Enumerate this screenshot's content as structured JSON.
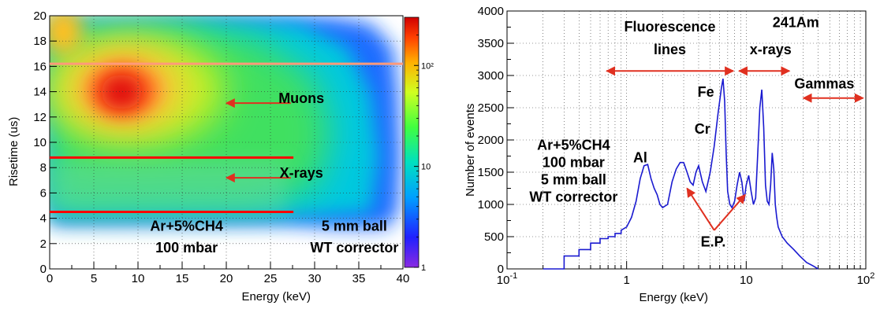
{
  "chart_data": [
    {
      "type": "heatmap",
      "xlabel": "Energy (keV)",
      "ylabel": "Risetime (us)",
      "xlim": [
        0,
        40
      ],
      "ylim": [
        0,
        20
      ],
      "x_ticks": [
        0,
        5,
        10,
        15,
        20,
        25,
        30,
        35,
        40
      ],
      "y_ticks": [
        0,
        2,
        4,
        6,
        8,
        10,
        12,
        14,
        16,
        18,
        20
      ],
      "grid": true,
      "colorbar": {
        "scale": "log",
        "tick_labels": [
          "1",
          "10",
          "10²"
        ],
        "tick_values": [
          1,
          10,
          100
        ]
      },
      "blobs": [
        {
          "x": 8.5,
          "y": 14.0,
          "level": 1.0
        },
        {
          "x": 22.0,
          "y": 13.5,
          "level": 0.55
        },
        {
          "x": 4.0,
          "y": 13.0,
          "level": 0.6
        }
      ],
      "cut_lines": [
        {
          "y": 16.2,
          "x_start": 0,
          "x_end": 40,
          "color": "#ff9a7a"
        },
        {
          "y": 8.8,
          "x_start": 0,
          "x_end": 27.6,
          "color": "#ff0000"
        },
        {
          "y": 4.5,
          "x_start": 0,
          "x_end": 27.6,
          "color": "#ff0000"
        }
      ],
      "annotations": [
        {
          "text": "Muons",
          "x": 28.5,
          "y": 13.1
        },
        {
          "text": "X-rays",
          "x": 28.5,
          "y": 7.2
        },
        {
          "text": "Ar+5%CH4",
          "x": 15.5,
          "y": 3.0
        },
        {
          "text": "100 mbar",
          "x": 15.5,
          "y": 1.3
        },
        {
          "text": "5 mm ball",
          "x": 34.5,
          "y": 3.0
        },
        {
          "text": "WT corrector",
          "x": 34.5,
          "y": 1.3
        }
      ],
      "arrows": [
        {
          "from": [
            27.3,
            13.1
          ],
          "to": [
            20.0,
            13.1
          ],
          "color": "#e03020"
        },
        {
          "from": [
            27.3,
            7.2
          ],
          "to": [
            20.0,
            7.2
          ],
          "color": "#e03020"
        }
      ]
    },
    {
      "type": "line",
      "xlabel": "Energy (keV)",
      "ylabel": "Number of events",
      "x_scale": "log",
      "xlim": [
        0.1,
        100
      ],
      "ylim": [
        0,
        4000
      ],
      "x_tick_labels": [
        {
          "base": "10",
          "exp": "-1",
          "value": 0.1
        },
        {
          "base": "1",
          "exp": "",
          "value": 1
        },
        {
          "base": "10",
          "exp": "",
          "value": 10
        },
        {
          "base": "10",
          "exp": "2",
          "value": 100
        }
      ],
      "y_ticks": [
        0,
        500,
        1000,
        1500,
        2000,
        2500,
        3000,
        3500,
        4000
      ],
      "grid": true,
      "line_color": "#1a1ad0",
      "series": [
        {
          "x": [
            0.2,
            0.3,
            0.3,
            0.4,
            0.4,
            0.5,
            0.5,
            0.6,
            0.6,
            0.7,
            0.7,
            0.8,
            0.8,
            0.9,
            0.9,
            1.0,
            1.1,
            1.2,
            1.3,
            1.4,
            1.5,
            1.6,
            1.7,
            1.8,
            1.9,
            2.0,
            2.2,
            2.4,
            2.6,
            2.8,
            3.0,
            3.2,
            3.4,
            3.6,
            3.8,
            4.0,
            4.3,
            4.6,
            5.0,
            5.4,
            5.8,
            6.2,
            6.4,
            6.6,
            6.8,
            7.0,
            7.3,
            7.6,
            8.0,
            8.4,
            8.8,
            9.2,
            9.6,
            10.0,
            10.5,
            11.0,
            11.5,
            12.0,
            12.5,
            13.0,
            13.5,
            14.0,
            14.5,
            15.0,
            15.5,
            16.0,
            16.5,
            17.0,
            17.5,
            18.0,
            18.5,
            19.0,
            20.0,
            22.0,
            25.0,
            28.0,
            32.0,
            36.0,
            40.0
          ],
          "y": [
            0,
            0,
            200,
            200,
            300,
            300,
            400,
            400,
            470,
            470,
            500,
            500,
            550,
            550,
            600,
            650,
            800,
            1050,
            1400,
            1600,
            1620,
            1400,
            1250,
            1150,
            1000,
            950,
            1000,
            1350,
            1550,
            1650,
            1650,
            1500,
            1350,
            1300,
            1500,
            1600,
            1350,
            1200,
            1500,
            1900,
            2400,
            2800,
            2950,
            2600,
            1800,
            1200,
            1000,
            950,
            1050,
            1300,
            1500,
            1350,
            1050,
            1300,
            1450,
            1200,
            1000,
            1100,
            1800,
            2500,
            2780,
            2200,
            1300,
            1050,
            1000,
            1300,
            1800,
            1550,
            1000,
            800,
            650,
            600,
            500,
            400,
            300,
            200,
            100,
            50,
            0
          ]
        }
      ],
      "peak_labels": [
        {
          "text": "Al",
          "x": 1.3,
          "y": 1650
        },
        {
          "text": "Cr",
          "x": 4.3,
          "y": 2100
        },
        {
          "text": "Fe",
          "x": 4.6,
          "y": 2670
        }
      ],
      "annotations": [
        {
          "text": "Fluorescence",
          "x": 2.3,
          "y": 3680
        },
        {
          "text": "lines",
          "x": 2.3,
          "y": 3330
        },
        {
          "text": "241Am",
          "x": 26.0,
          "y": 3750
        },
        {
          "text": "x-rays",
          "x": 16.0,
          "y": 3330
        },
        {
          "text": "Gammas",
          "x": 45.0,
          "y": 2800
        },
        {
          "text": "Ar+5%CH4",
          "x": 0.36,
          "y": 1850
        },
        {
          "text": "100 mbar",
          "x": 0.36,
          "y": 1580
        },
        {
          "text": "5 mm ball",
          "x": 0.36,
          "y": 1310
        },
        {
          "text": "WT corrector",
          "x": 0.36,
          "y": 1040
        },
        {
          "text": "E.P.",
          "x": 5.3,
          "y": 350
        }
      ],
      "range_arrows": [
        {
          "x_start": 0.68,
          "x_end": 7.8,
          "y": 3070,
          "color": "#e03020"
        },
        {
          "x_start": 8.7,
          "x_end": 23.0,
          "y": 3070,
          "color": "#e03020"
        },
        {
          "x_start": 30.0,
          "x_end": 95.0,
          "y": 2650,
          "color": "#e03020"
        }
      ],
      "ep_arrows": [
        {
          "from": [
            5.4,
            600
          ],
          "to": [
            3.2,
            1250
          ],
          "color": "#e03020"
        },
        {
          "from": [
            5.4,
            600
          ],
          "to": [
            9.8,
            1150
          ],
          "color": "#e03020"
        }
      ]
    }
  ]
}
